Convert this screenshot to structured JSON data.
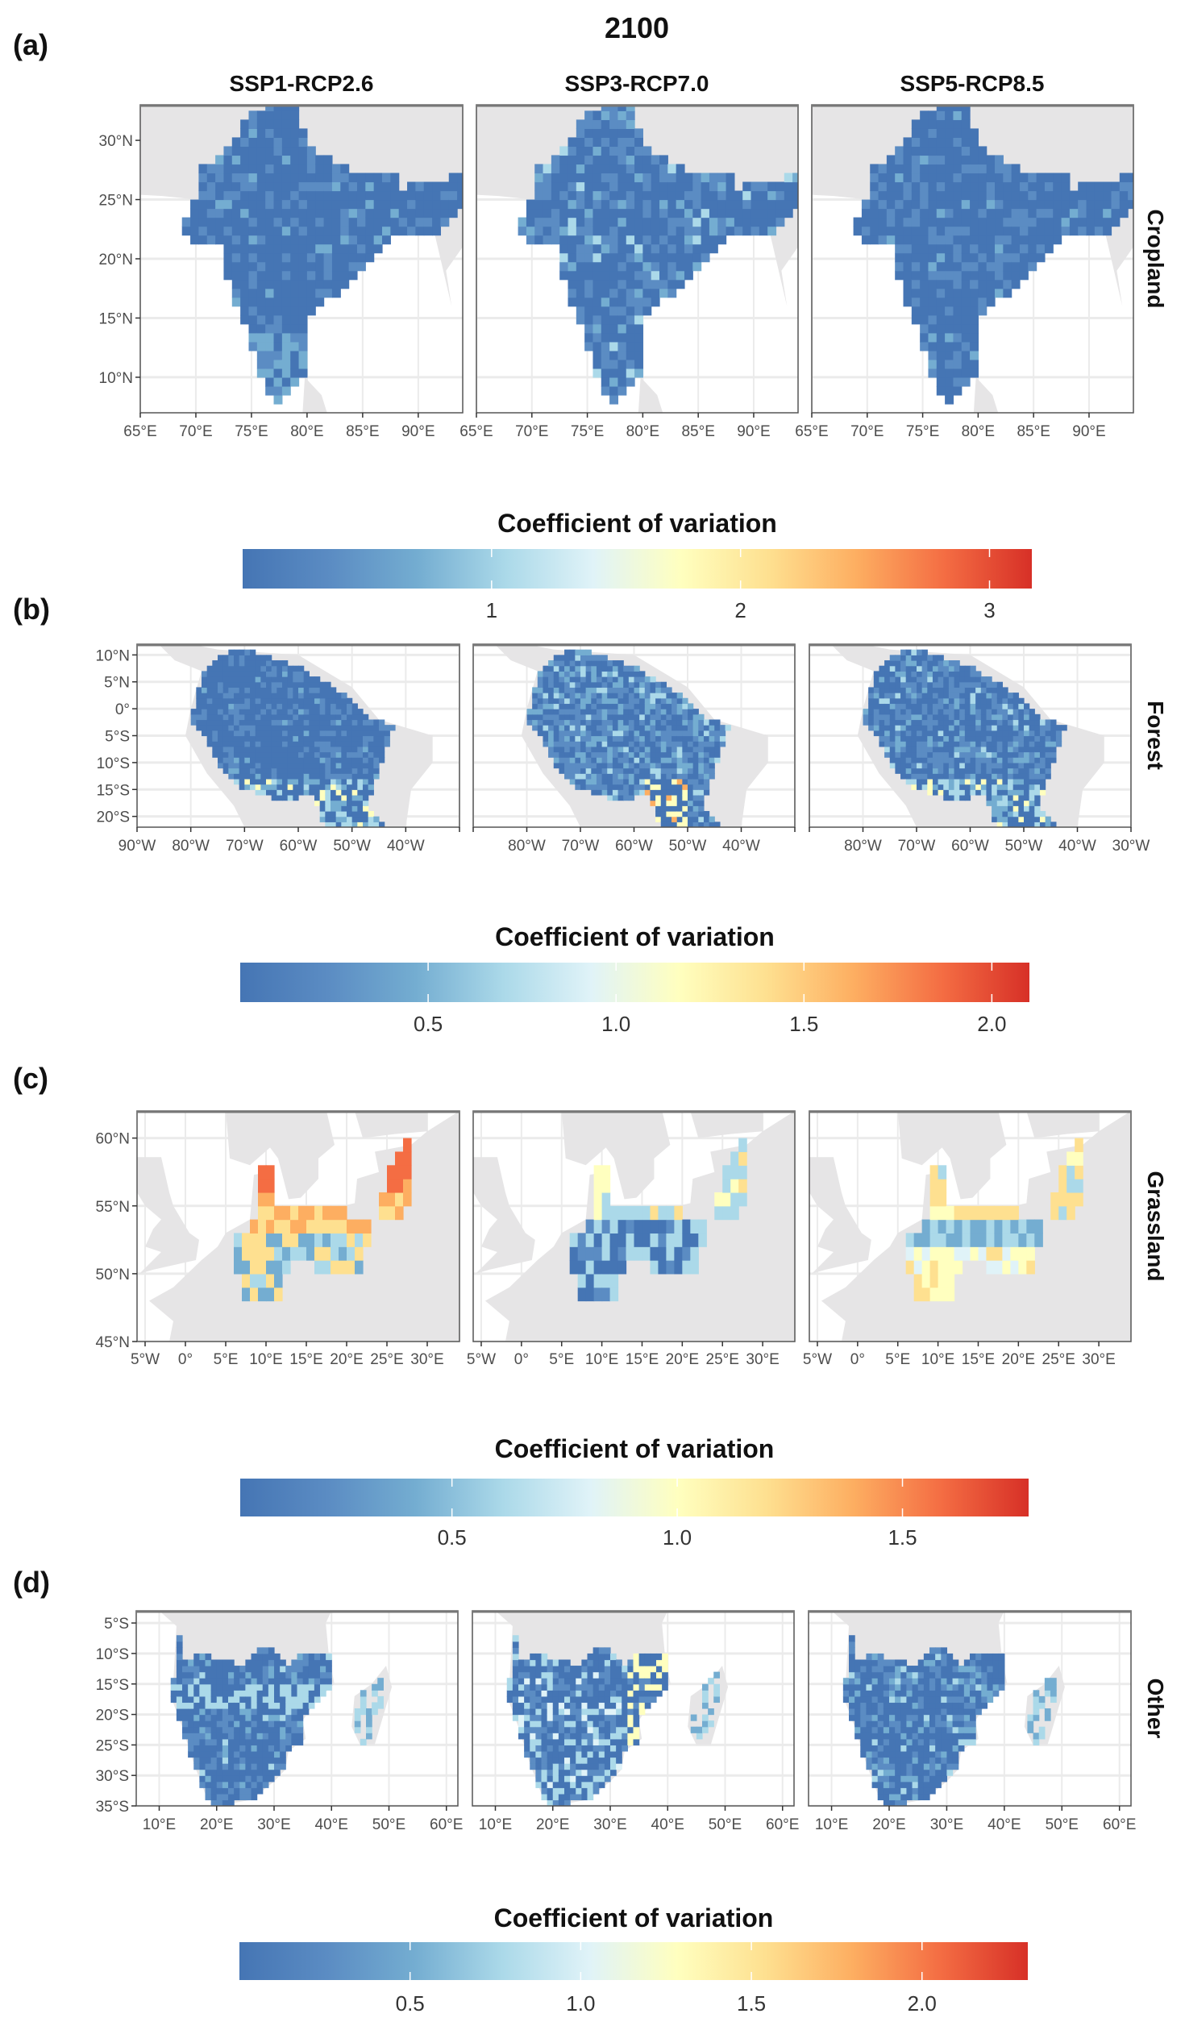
{
  "figure": {
    "title": "2100",
    "scenarios": [
      "SSP1-RCP2.6",
      "SSP3-RCP7.0",
      "SSP5-RCP8.5"
    ]
  },
  "palette": [
    "#4575b4",
    "#5b8cc3",
    "#74add1",
    "#abd9e9",
    "#e0f3f8",
    "#ffffbf",
    "#fee090",
    "#fdae61",
    "#f46d43",
    "#d73027"
  ],
  "land_color": "#e6e5e6",
  "chart_data": [
    {
      "type": "heatmap",
      "panel_label": "(a)",
      "facet": "Cropland",
      "xlim": [
        65,
        94
      ],
      "ylim": [
        7,
        33
      ],
      "x_ticks": [
        65,
        70,
        75,
        80,
        85,
        90
      ],
      "x_tick_labels": [
        [
          "65°E",
          "70°E",
          "75°E",
          "80°E",
          "85°E",
          "90°E"
        ],
        [
          "65°E",
          "70°E",
          "75°E",
          "80°E",
          "85°E",
          "90°E"
        ],
        [
          "65°E",
          "70°E",
          "75°E",
          "80°E",
          "85°E",
          "90°E"
        ]
      ],
      "y_ticks": [
        10,
        15,
        20,
        25,
        30
      ],
      "y_tick_labels": [
        "10°N",
        "15°N",
        "20°N",
        "25°N",
        "30°N"
      ],
      "colorbar": {
        "title": "Coefficient of variation",
        "range": [
          0,
          3.17
        ],
        "ticks": [
          1,
          2,
          3
        ],
        "tick_labels": [
          "1",
          "2",
          "3"
        ]
      }
    },
    {
      "type": "heatmap",
      "panel_label": "(b)",
      "facet": "Forest",
      "xlim": [
        -90,
        -30
      ],
      "ylim": [
        -22,
        12
      ],
      "x_ticks": [
        -90,
        -80,
        -70,
        -60,
        -50,
        -40,
        -30
      ],
      "x_tick_labels": [
        [
          "90°W",
          "80°W",
          "70°W",
          "60°W",
          "50°W",
          "40°W",
          ""
        ],
        [
          "",
          "80°W",
          "70°W",
          "60°W",
          "50°W",
          "40°W",
          ""
        ],
        [
          "",
          "80°W",
          "70°W",
          "60°W",
          "50°W",
          "40°W",
          "30°W"
        ]
      ],
      "y_ticks": [
        -20,
        -15,
        -10,
        -5,
        0,
        5,
        10
      ],
      "y_tick_labels": [
        "20°S",
        "15°S",
        "10°S",
        "5°S",
        "0°",
        "5°N",
        "10°N"
      ],
      "colorbar": {
        "title": "Coefficient of variation",
        "range": [
          0,
          2.1
        ],
        "ticks": [
          0.5,
          1.0,
          1.5,
          2.0
        ],
        "tick_labels": [
          "0.5",
          "1.0",
          "1.5",
          "2.0"
        ]
      }
    },
    {
      "type": "heatmap",
      "panel_label": "(c)",
      "facet": "Grassland",
      "xlim": [
        -6,
        34
      ],
      "ylim": [
        45,
        62
      ],
      "x_ticks": [
        -5,
        0,
        5,
        10,
        15,
        20,
        25,
        30
      ],
      "x_tick_labels": [
        [
          "5°W",
          "0°",
          "5°E",
          "10°E",
          "15°E",
          "20°E",
          "25°E",
          "30°E"
        ],
        [
          "5°W",
          "0°",
          "5°E",
          "10°E",
          "15°E",
          "20°E",
          "25°E",
          "30°E"
        ],
        [
          "5°W",
          "0°",
          "5°E",
          "10°E",
          "15°E",
          "20°E",
          "25°E",
          "30°E"
        ]
      ],
      "y_ticks": [
        45,
        50,
        55,
        60
      ],
      "y_tick_labels": [
        "45°N",
        "50°N",
        "55°N",
        "60°N"
      ],
      "colorbar": {
        "title": "Coefficient of variation",
        "range": [
          0.03,
          1.78
        ],
        "ticks": [
          0.5,
          1.0,
          1.5
        ],
        "tick_labels": [
          "0.5",
          "1.0",
          "1.5"
        ]
      }
    },
    {
      "type": "heatmap",
      "panel_label": "(d)",
      "facet": "Other",
      "xlim": [
        6,
        62
      ],
      "ylim": [
        -35,
        -3
      ],
      "x_ticks": [
        10,
        20,
        30,
        40,
        50,
        60
      ],
      "x_tick_labels": [
        [
          "10°E",
          "20°E",
          "30°E",
          "40°E",
          "50°E",
          "60°E"
        ],
        [
          "10°E",
          "20°E",
          "30°E",
          "40°E",
          "50°E",
          "60°E"
        ],
        [
          "10°E",
          "20°E",
          "30°E",
          "40°E",
          "50°E",
          "60°E"
        ]
      ],
      "y_ticks": [
        -35,
        -30,
        -25,
        -20,
        -15,
        -10,
        -5
      ],
      "y_tick_labels": [
        "35°S",
        "30°S",
        "25°S",
        "20°S",
        "15°S",
        "10°S",
        "5°S"
      ],
      "colorbar": {
        "title": "Coefficient of variation",
        "range": [
          0,
          2.31
        ],
        "ticks": [
          0.5,
          1.0,
          1.5,
          2.0
        ],
        "tick_labels": [
          "0.5",
          "1.0",
          "1.5",
          "2.0"
        ]
      }
    }
  ]
}
